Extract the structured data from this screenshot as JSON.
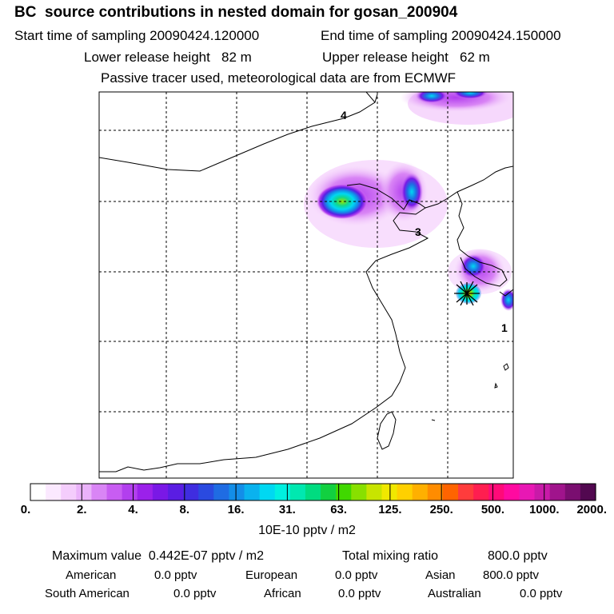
{
  "header": {
    "title": "BC  source contributions in nested domain for gosan_200904",
    "start_label": "Start time of sampling 20090424.120000",
    "end_label": "End time of sampling 20090424.150000",
    "lower_label": "Lower release height   82 m",
    "upper_label": "Upper release height   62 m",
    "tracer_label": "Passive tracer used, meteorological data are from ECMWF"
  },
  "map": {
    "region_labels": [
      "4",
      "3",
      "1"
    ],
    "receptor_symbol": "star-marker-icon"
  },
  "colorbar": {
    "ticks": [
      "0.",
      "2.",
      "4.",
      "8.",
      "16.",
      "31.",
      "63.",
      "125.",
      "250.",
      "500.",
      "1000.",
      "2000."
    ],
    "units": "10E-10 pptv / m2",
    "colors": [
      "#ffffff",
      "#fbe9ff",
      "#f4cdfc",
      "#eab2fa",
      "#d985f5",
      "#c85df2",
      "#b23fee",
      "#9b21ea",
      "#7a18e6",
      "#5a1de3",
      "#3f2de0",
      "#2a4ae0",
      "#1f6ce3",
      "#138ee8",
      "#0ab2ee",
      "#00d8f2",
      "#00f0e0",
      "#00e8b0",
      "#00dc80",
      "#12d040",
      "#40d800",
      "#88e000",
      "#c8e400",
      "#f0e800",
      "#ffd000",
      "#ffb000",
      "#ff8c00",
      "#ff6400",
      "#ff3c3c",
      "#ff1e50",
      "#ff0a78",
      "#ff0aa0",
      "#e818b4",
      "#c81aa8",
      "#a0148c",
      "#7a0e70",
      "#520850"
    ]
  },
  "stats": {
    "max_label": "Maximum value  0.442E-07 pptv / m2",
    "total_label": "Total mixing ratio",
    "total_value": "800.0 pptv",
    "regions": [
      {
        "name": "American",
        "value": "0.0 pptv"
      },
      {
        "name": "European",
        "value": "0.0 pptv"
      },
      {
        "name": "Asian",
        "value": "800.0 pptv"
      },
      {
        "name": "South American",
        "value": "0.0 pptv"
      },
      {
        "name": "African",
        "value": "0.0 pptv"
      },
      {
        "name": "Australian",
        "value": "0.0 pptv"
      }
    ]
  }
}
